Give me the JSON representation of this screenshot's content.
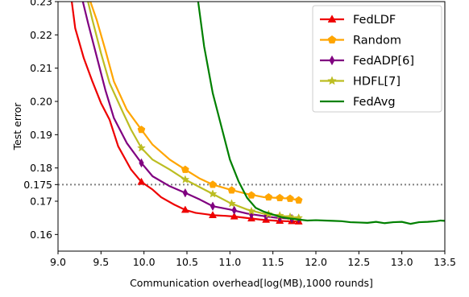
{
  "chart_data": {
    "type": "line",
    "xlabel": "Communication overhead[log(MB),1000 rounds]",
    "ylabel": "Test error",
    "xlim": [
      9.0,
      13.5
    ],
    "ylim": [
      0.155,
      0.23
    ],
    "x_ticks": [
      9.0,
      9.5,
      10.0,
      10.5,
      11.0,
      11.5,
      12.0,
      12.5,
      13.0,
      13.5
    ],
    "x_tick_labels": [
      "9.0",
      "9.5",
      "10.0",
      "10.5",
      "11.0",
      "11.5",
      "12.0",
      "12.5",
      "13.0",
      "13.5"
    ],
    "y_ticks": [
      0.16,
      0.17,
      0.175,
      0.18,
      0.19,
      0.2,
      0.21,
      0.22,
      0.23
    ],
    "y_tick_labels": [
      "0.16",
      "0.17",
      "0.175",
      "0.18",
      "0.19",
      "0.20",
      "0.21",
      "0.22",
      "0.23"
    ],
    "grid": false,
    "legend_position": "top-right",
    "reference_line": {
      "y": 0.175,
      "style": "dotted",
      "color": "#808080"
    },
    "series": [
      {
        "name": "FedLDF",
        "color": "#ee0000",
        "marker": "triangle",
        "x": [
          9.15,
          9.2,
          9.3,
          9.4,
          9.5,
          9.6,
          9.7,
          9.85,
          9.97,
          10.1,
          10.2,
          10.35,
          10.48,
          10.6,
          10.75,
          10.8,
          10.95,
          11.05,
          11.15,
          11.25,
          11.35,
          11.45,
          11.55,
          11.65,
          11.75,
          11.82
        ],
        "y": [
          0.232,
          0.222,
          0.213,
          0.206,
          0.1995,
          0.1945,
          0.1865,
          0.1795,
          0.1758,
          0.1735,
          0.1712,
          0.169,
          0.1674,
          0.1665,
          0.166,
          0.1658,
          0.1656,
          0.1654,
          0.1651,
          0.1648,
          0.1645,
          0.1643,
          0.1641,
          0.164,
          0.1639,
          0.1639
        ],
        "marker_x": [
          9.97,
          10.48,
          10.8,
          11.05,
          11.25,
          11.42,
          11.58,
          11.72,
          11.8
        ],
        "marker_y": [
          0.1758,
          0.1674,
          0.1658,
          0.1654,
          0.1648,
          0.1644,
          0.1641,
          0.164,
          0.1639
        ]
      },
      {
        "name": "Random",
        "color": "#ffa500",
        "marker": "pentagon",
        "x": [
          9.35,
          9.45,
          9.55,
          9.65,
          9.8,
          9.97,
          10.1,
          10.3,
          10.48,
          10.65,
          10.8,
          11.0,
          11.2,
          11.4,
          11.55,
          11.7,
          11.8
        ],
        "y": [
          0.232,
          0.2245,
          0.2155,
          0.206,
          0.1975,
          0.1915,
          0.187,
          0.1825,
          0.1795,
          0.1768,
          0.175,
          0.1735,
          0.1722,
          0.1712,
          0.171,
          0.1708,
          0.1703
        ],
        "marker_x": [
          9.97,
          10.48,
          10.8,
          11.02,
          11.25,
          11.45,
          11.58,
          11.7,
          11.8
        ],
        "marker_y": [
          0.1915,
          0.1795,
          0.175,
          0.1733,
          0.1718,
          0.1712,
          0.171,
          0.1708,
          0.1703
        ]
      },
      {
        "name": "FedADP[6]",
        "color": "#800080",
        "marker": "diamond",
        "x": [
          9.27,
          9.35,
          9.45,
          9.55,
          9.65,
          9.8,
          9.97,
          10.1,
          10.3,
          10.48,
          10.65,
          10.8,
          11.0,
          11.2,
          11.4,
          11.55,
          11.7,
          11.8
        ],
        "y": [
          0.232,
          0.2235,
          0.2135,
          0.2035,
          0.195,
          0.1875,
          0.1815,
          0.1775,
          0.1745,
          0.1725,
          0.1705,
          0.1685,
          0.1675,
          0.1663,
          0.1655,
          0.165,
          0.1648,
          0.1647
        ],
        "marker_x": [
          9.97,
          10.48,
          10.8,
          11.05,
          11.25,
          11.42,
          11.58,
          11.72,
          11.8
        ],
        "marker_y": [
          0.1815,
          0.1725,
          0.1685,
          0.1673,
          0.166,
          0.1655,
          0.165,
          0.1648,
          0.1647
        ]
      },
      {
        "name": "HDFL[7]",
        "color": "#bcbd22",
        "marker": "star",
        "x": [
          9.33,
          9.4,
          9.5,
          9.6,
          9.75,
          9.85,
          9.97,
          10.1,
          10.3,
          10.48,
          10.65,
          10.8,
          11.0,
          11.2,
          11.4,
          11.55,
          11.7,
          11.8
        ],
        "y": [
          0.232,
          0.2245,
          0.2145,
          0.2055,
          0.197,
          0.1915,
          0.186,
          0.1825,
          0.1795,
          0.1765,
          0.1742,
          0.1722,
          0.1695,
          0.1675,
          0.1662,
          0.1658,
          0.1653,
          0.165
        ],
        "marker_x": [
          9.97,
          10.48,
          10.8,
          11.02,
          11.25,
          11.45,
          11.58,
          11.7,
          11.8
        ],
        "marker_y": [
          0.186,
          0.1765,
          0.1722,
          0.1693,
          0.167,
          0.1661,
          0.1657,
          0.1653,
          0.165
        ]
      },
      {
        "name": "FedAvg",
        "color": "#008000",
        "marker": "none",
        "x": [
          10.62,
          10.7,
          10.8,
          10.9,
          11.0,
          11.1,
          11.2,
          11.3,
          11.4,
          11.5,
          11.6,
          11.7,
          11.8,
          11.9,
          12.0,
          12.1,
          12.2,
          12.3,
          12.4,
          12.5,
          12.6,
          12.7,
          12.8,
          12.9,
          13.0,
          13.1,
          13.2,
          13.3,
          13.4,
          13.45,
          13.5
        ],
        "y": [
          0.232,
          0.2165,
          0.2025,
          0.1925,
          0.1825,
          0.176,
          0.171,
          0.168,
          0.1668,
          0.166,
          0.1652,
          0.1648,
          0.1645,
          0.1642,
          0.1643,
          0.1642,
          0.1641,
          0.164,
          0.1637,
          0.1636,
          0.1635,
          0.1638,
          0.1634,
          0.1637,
          0.1638,
          0.1632,
          0.1637,
          0.1638,
          0.164,
          0.1642,
          0.1641
        ]
      }
    ]
  }
}
